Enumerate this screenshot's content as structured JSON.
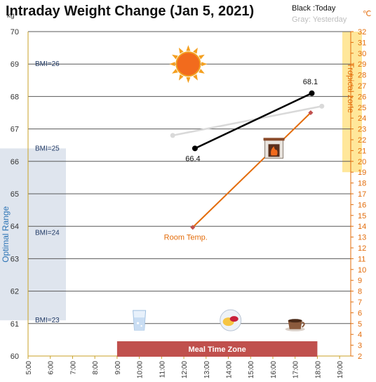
{
  "chart_data": {
    "type": "line",
    "title": "Intraday Weight Change (Jan 5, 2021)",
    "legend": {
      "today": "Black :Today",
      "yesterday": "Gray: Yesterday",
      "placement": "top-right"
    },
    "units": {
      "left": "kg",
      "right": "℃"
    },
    "x": {
      "ticks": [
        "5:00",
        "6:00",
        "7:00",
        "8:00",
        "9:00",
        "10:00",
        "11:00",
        "12:00",
        "13:00",
        "14:00",
        "15:00",
        "16:00",
        "17:00",
        "18:00",
        "19:00"
      ],
      "range_hours": [
        5,
        19.5
      ]
    },
    "y_left": {
      "ylim": [
        60,
        70
      ],
      "ticks": [
        60,
        61,
        62,
        63,
        64,
        65,
        66,
        67,
        68,
        69,
        70
      ],
      "grid": true
    },
    "y_right": {
      "ylim": [
        2,
        32
      ],
      "ticks": [
        2,
        3,
        4,
        5,
        6,
        7,
        8,
        9,
        10,
        11,
        12,
        13,
        14,
        15,
        16,
        17,
        18,
        19,
        20,
        21,
        22,
        23,
        24,
        25,
        26,
        27,
        28,
        29,
        30,
        31,
        32
      ]
    },
    "series": [
      {
        "key": "today",
        "axis": "left",
        "color": "#000000",
        "x_hours": [
          12.5,
          17.75
        ],
        "y": [
          66.4,
          68.1
        ],
        "data_labels": [
          "66.4",
          "68.1"
        ]
      },
      {
        "key": "yesterday",
        "axis": "left",
        "color": "#d9d9d9",
        "x_hours": [
          11.5,
          18.2
        ],
        "y": [
          66.8,
          67.7
        ]
      },
      {
        "key": "room_temp",
        "label": "Room Temp.",
        "axis": "right",
        "color": "#e36c0a",
        "x_hours": [
          12.4,
          17.7
        ],
        "y": [
          13.9,
          24.5
        ]
      }
    ],
    "bmi_lines": [
      {
        "label": "BMI=26",
        "y": 69.0
      },
      {
        "label": "BMI=25",
        "y": 66.4
      },
      {
        "label": "BMI=24",
        "y": 63.8
      },
      {
        "label": "BMI=23",
        "y": 61.1
      }
    ],
    "zones": {
      "optimal": {
        "label": "Optimal Range",
        "y": [
          61.1,
          66.4
        ],
        "color": "#dfe5ee"
      },
      "tropical": {
        "label": "Tropical zone",
        "axis": "right",
        "y": [
          19,
          32
        ],
        "color": "#ffe79a"
      },
      "meal": {
        "label": "Meal Time Zone",
        "x_hours": [
          9,
          18
        ],
        "color": "#c0504d"
      }
    },
    "icons": [
      {
        "name": "sun-icon",
        "x_hours": 12.2,
        "y": 69.0
      },
      {
        "name": "fireplace-icon",
        "x_hours": 16.05,
        "y": 66.4
      },
      {
        "name": "water-glass-icon",
        "x_hours": 10.0,
        "y": 61.1
      },
      {
        "name": "food-plate-icon",
        "x_hours": 14.1,
        "y": 61.1
      },
      {
        "name": "coffee-cup-icon",
        "x_hours": 17.0,
        "y": 61.0
      }
    ]
  }
}
